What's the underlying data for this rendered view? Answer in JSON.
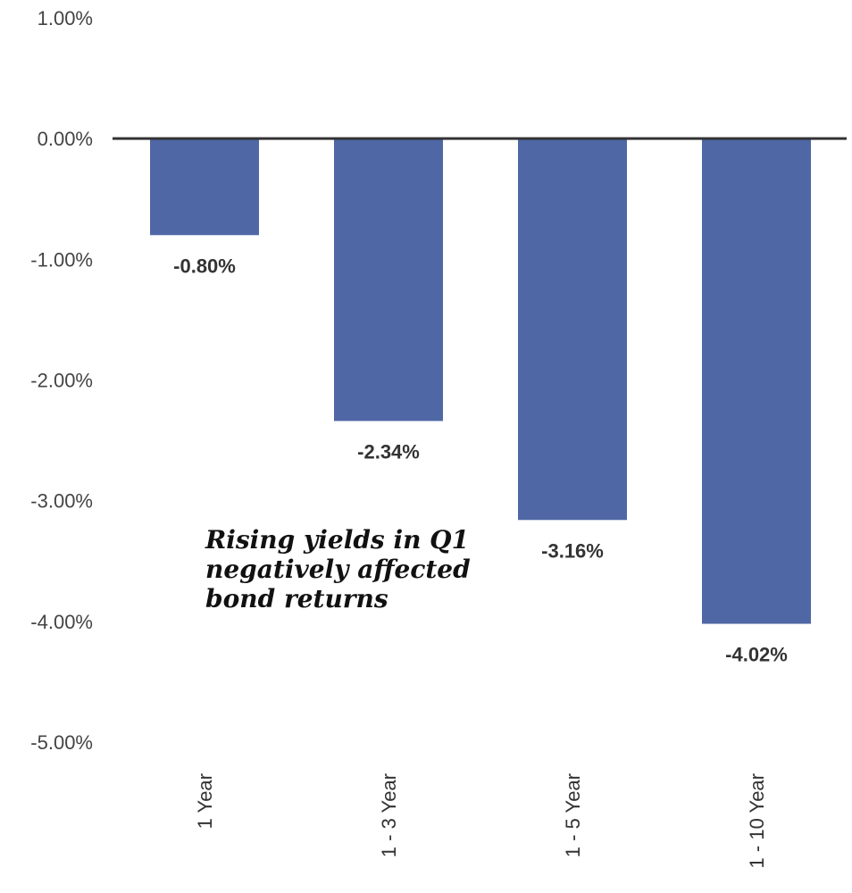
{
  "chart_data": {
    "type": "bar",
    "categories": [
      "1 Year",
      "1 - 3 Year",
      "1 - 5 Year",
      "1 - 10 Year"
    ],
    "values": [
      -0.8,
      -2.34,
      -3.16,
      -4.02
    ],
    "data_labels": [
      "-0.80%",
      "-2.34%",
      "-3.16%",
      "-4.02%"
    ],
    "title": "",
    "xlabel": "",
    "ylabel": "",
    "ylim": [
      -5,
      1
    ],
    "y_ticks": [
      1,
      0,
      -1,
      -2,
      -3,
      -4,
      -5
    ],
    "y_tick_labels": [
      "1.00%",
      "0.00%",
      "-1.00%",
      "-2.00%",
      "-3.00%",
      "-4.00%",
      "-5.00%"
    ],
    "grid": false,
    "legend": "none",
    "bar_color": "#4F67A5",
    "axis_color": "#333333",
    "annotation": {
      "lines": [
        "Rising yields in Q1",
        "negatively affected",
        "bond returns"
      ]
    }
  }
}
